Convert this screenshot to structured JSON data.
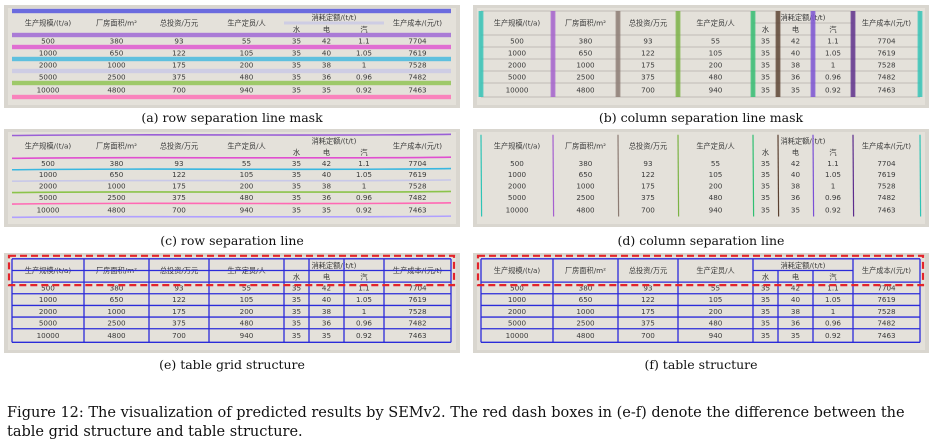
{
  "table": {
    "header": {
      "scale": "生产规模/(t/a)",
      "area": "厂房面积/m²",
      "invest": "总投资/万元",
      "staff": "生产定员/人",
      "consumption": "消耗定额/(t/t)",
      "water": "水",
      "power": "电",
      "steam": "汽",
      "cost": "生产成本/(元/t)"
    },
    "rows": [
      [
        "500",
        "380",
        "93",
        "55",
        "35",
        "42",
        "1.1",
        "7704"
      ],
      [
        "1000",
        "650",
        "122",
        "105",
        "35",
        "40",
        "1.05",
        "7619"
      ],
      [
        "2000",
        "1000",
        "175",
        "200",
        "35",
        "38",
        "1",
        "7528"
      ],
      [
        "5000",
        "2500",
        "375",
        "480",
        "35",
        "36",
        "0.96",
        "7482"
      ],
      [
        "10000",
        "4800",
        "700",
        "940",
        "35",
        "35",
        "0.92",
        "7463"
      ]
    ]
  },
  "panels": [
    {
      "id": "a",
      "caption": "(a) row separation line mask",
      "type": "row-mask"
    },
    {
      "id": "b",
      "caption": "(b) column separation line mask",
      "type": "col-mask"
    },
    {
      "id": "c",
      "caption": "(c) row separation line",
      "type": "row-line"
    },
    {
      "id": "d",
      "caption": "(d) column separation line",
      "type": "col-line"
    },
    {
      "id": "e",
      "caption": "(e) table grid structure",
      "type": "grid"
    },
    {
      "id": "f",
      "caption": "(f) table structure",
      "type": "structure"
    }
  ],
  "colors": {
    "paper": "#d9d6cf",
    "ink": "#3a3a3a",
    "structure_blue": "#2b2bd9",
    "dash_red": "#e3242b",
    "row_palette": [
      "#4a4ae0",
      "#9a5fd6",
      "#e04fd0",
      "#3ab7e0",
      "#c8c8e8",
      "#8bc34a",
      "#ff69b4",
      "#b0a0ff"
    ],
    "col_palette": [
      "#2ec4b6",
      "#a55fd0",
      "#8c7b73",
      "#7bb343",
      "#2fbf71",
      "#5a4030",
      "#7a4fd6",
      "#5b2b8c"
    ]
  },
  "figure_caption": {
    "line1": "Figure 12: The visualization of predicted results by SEMv2. The red dash boxes in (e-f) denote the difference between the",
    "line2": "table grid structure and table structure."
  }
}
